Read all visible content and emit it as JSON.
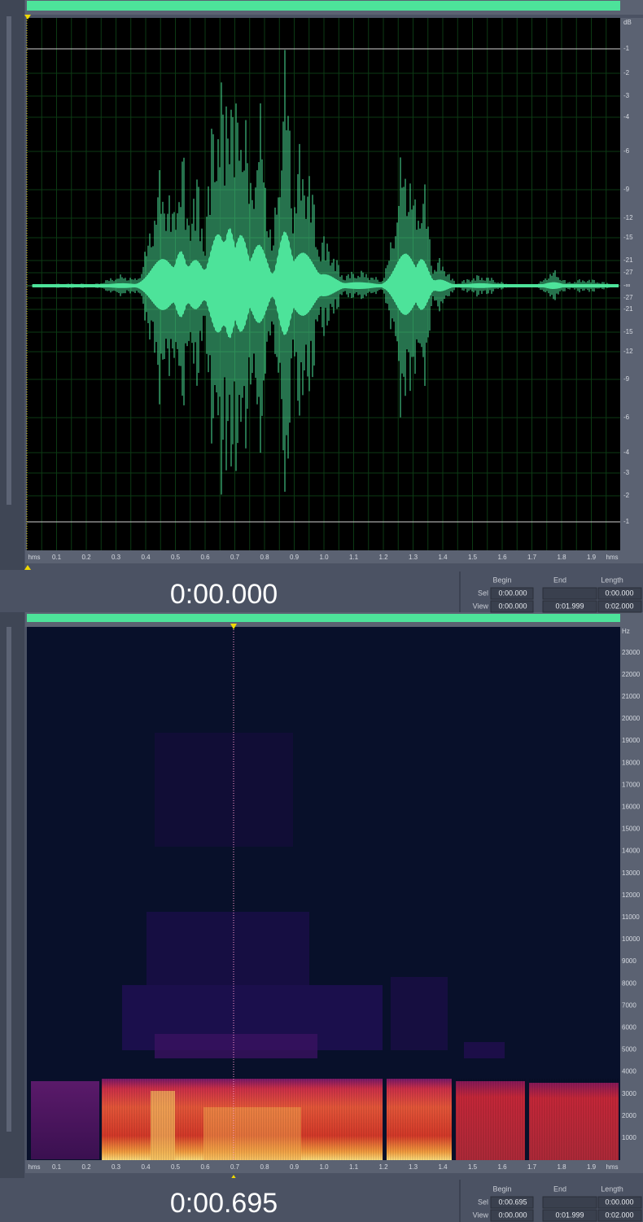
{
  "waveform": {
    "db_axis": [
      "dB",
      "-1",
      "-2",
      "-3",
      "-4",
      "-6",
      "-9",
      "-12",
      "-15",
      "-21",
      "-27",
      "-∞",
      "-27",
      "-21",
      "-15",
      "-12",
      "-9",
      "-6",
      "-4",
      "-3",
      "-2",
      "-1"
    ],
    "time_axis": [
      "hms",
      "0.1",
      "0.2",
      "0.3",
      "0.4",
      "0.5",
      "0.6",
      "0.7",
      "0.8",
      "0.9",
      "1.0",
      "1.1",
      "1.2",
      "1.3",
      "1.4",
      "1.5",
      "1.6",
      "1.7",
      "1.8",
      "1.9",
      "hms"
    ],
    "time_display": "0:00.000",
    "selection": {
      "begin_header": "Begin",
      "end_header": "End",
      "length_header": "Length",
      "sel_label": "Sel",
      "sel_begin": "0:00.000",
      "sel_length": "0:00.000",
      "view_label": "View",
      "view_begin": "0:00.000",
      "view_end": "0:01.999",
      "view_length": "0:02.000"
    }
  },
  "spectral": {
    "hz_axis": [
      "Hz",
      "23000",
      "22000",
      "21000",
      "20000",
      "19000",
      "18000",
      "17000",
      "16000",
      "15000",
      "14000",
      "13000",
      "12000",
      "11000",
      "10000",
      "9000",
      "8000",
      "7000",
      "6000",
      "5000",
      "4000",
      "3000",
      "2000",
      "1000"
    ],
    "time_axis": [
      "hms",
      "0.1",
      "0.2",
      "0.3",
      "0.4",
      "0.5",
      "0.6",
      "0.7",
      "0.8",
      "0.9",
      "1.0",
      "1.1",
      "1.2",
      "1.3",
      "1.4",
      "1.5",
      "1.6",
      "1.7",
      "1.8",
      "1.9",
      "hms"
    ],
    "time_display": "0:00.695",
    "selection": {
      "begin_header": "Begin",
      "end_header": "End",
      "length_header": "Length",
      "sel_label": "Sel",
      "sel_begin": "0:00.695",
      "sel_length": "0:00.000",
      "view_label": "View",
      "view_begin": "0:00.000",
      "view_end": "0:01.999",
      "view_length": "0:02.000"
    }
  }
}
